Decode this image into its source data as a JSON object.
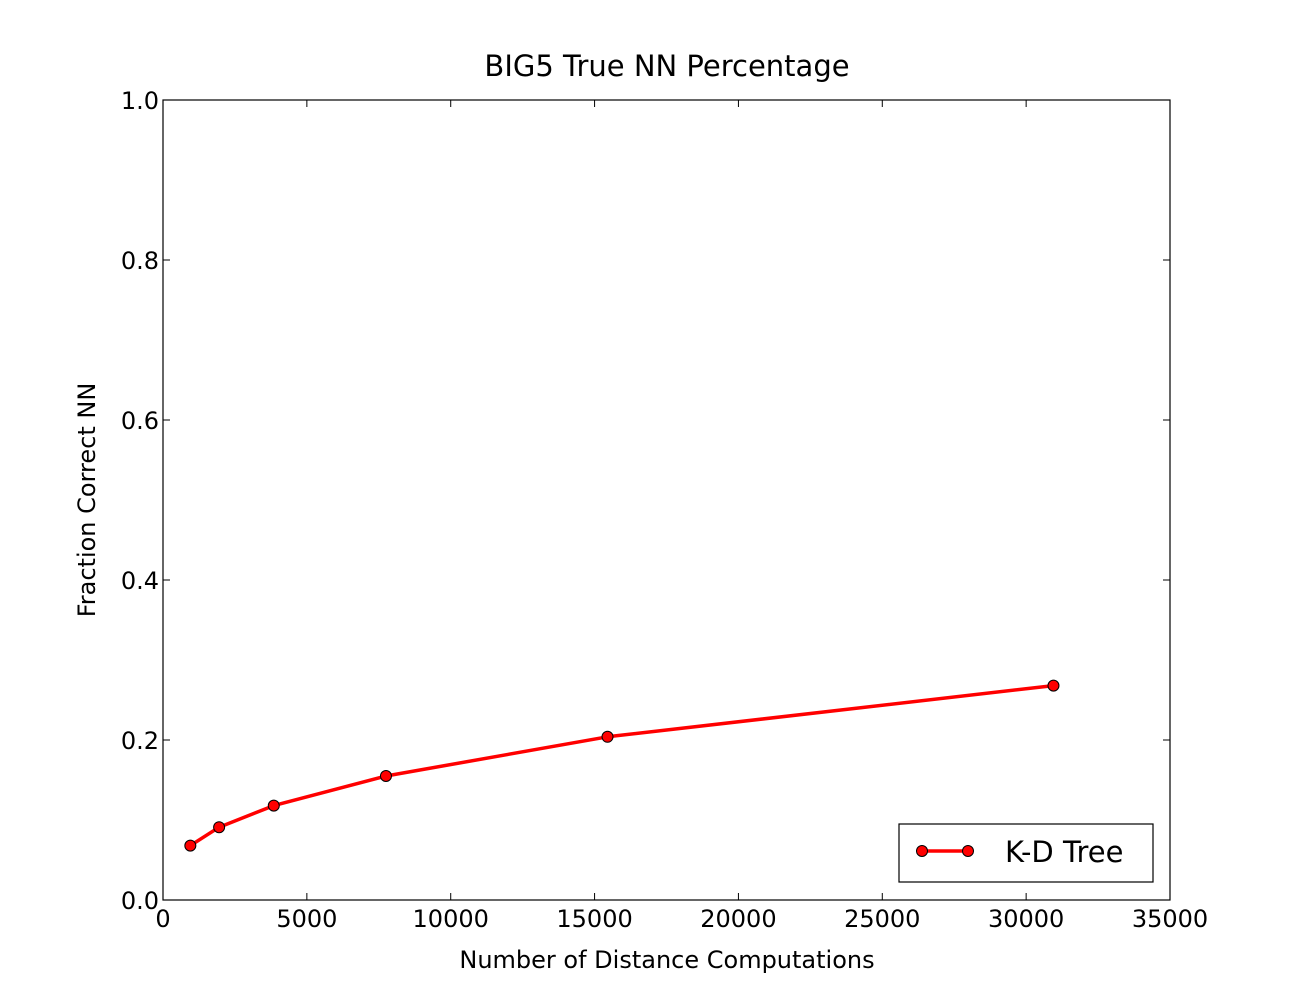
{
  "chart_data": {
    "type": "line",
    "title": "BIG5 True NN Percentage",
    "xlabel": "Number of Distance Computations",
    "ylabel": "Fraction Correct NN",
    "xlim": [
      0,
      35000
    ],
    "ylim": [
      0.0,
      1.0
    ],
    "xticks": [
      "0",
      "5000",
      "10000",
      "15000",
      "20000",
      "25000",
      "30000",
      "35000"
    ],
    "yticks": [
      "0.0",
      "0.2",
      "0.4",
      "0.6",
      "0.8",
      "1.0"
    ],
    "grid": false,
    "legend_position": "lower-right",
    "series": [
      {
        "name": "K-D Tree",
        "color": "#ff0000",
        "marker": "circle",
        "x": [
          950,
          1950,
          3850,
          7750,
          15450,
          30950
        ],
        "y": [
          0.068,
          0.091,
          0.118,
          0.155,
          0.204,
          0.268
        ]
      }
    ]
  }
}
